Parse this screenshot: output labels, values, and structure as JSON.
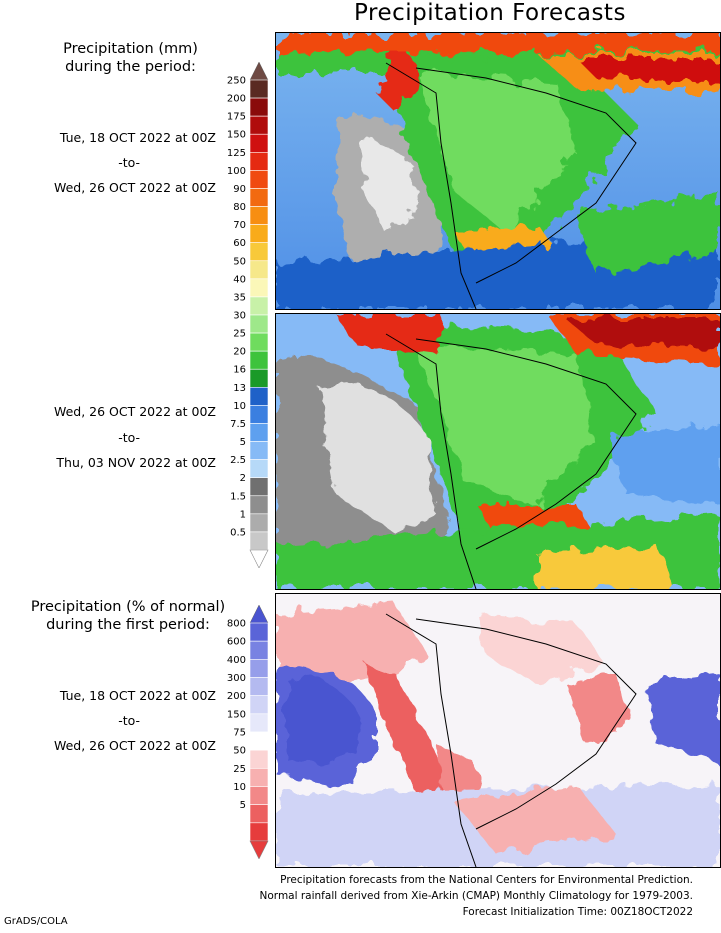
{
  "title": "Precipitation Forecasts",
  "top_heading": [
    "Precipitation (mm)",
    "during the period:"
  ],
  "period1": {
    "start": "Tue, 18 OCT 2022 at 00Z",
    "sep": "-to-",
    "end": "Wed, 26 OCT 2022 at 00Z"
  },
  "period2": {
    "start": "Wed, 26 OCT 2022 at 00Z",
    "sep": "-to-",
    "end": "Thu, 03 NOV 2022 at 00Z"
  },
  "precip_scale": {
    "labels": [
      "250",
      "200",
      "175",
      "150",
      "125",
      "100",
      "90",
      "80",
      "70",
      "60",
      "50",
      "40",
      "35",
      "30",
      "25",
      "20",
      "16",
      "13",
      "10",
      "7.5",
      "5",
      "2.5",
      "2",
      "1.5",
      "1",
      "0.5"
    ],
    "colors": [
      "#5a2a22",
      "#8a0b0b",
      "#b00c0c",
      "#cf1010",
      "#e52a12",
      "#f04a10",
      "#f26a10",
      "#f78e12",
      "#f9ab1a",
      "#f8c93a",
      "#f6e88a",
      "#fbf7b8",
      "#c8f1a8",
      "#9ee88a",
      "#6fdc5e",
      "#3ec33c",
      "#1a9a28",
      "#1f61c8",
      "#3b7fe0",
      "#5ea0ef",
      "#86baf6",
      "#b6d9f8",
      "#707070",
      "#8e8e8e",
      "#acacac",
      "#c8c8c8"
    ],
    "tip_top": "#6e4a44",
    "tip_bottom": "#ffffff"
  },
  "pct_heading": [
    "Precipitation (% of normal)",
    "during the first period:"
  ],
  "pct_period": {
    "start": "Tue, 18 OCT 2022 at 00Z",
    "sep": "-to-",
    "end": "Wed, 26 OCT 2022 at 00Z"
  },
  "pct_scale": {
    "labels": [
      "800",
      "600",
      "400",
      "300",
      "200",
      "150",
      "75",
      "50",
      "25",
      "10",
      "5"
    ],
    "colors": [
      "#5a64d8",
      "#7882e2",
      "#969eea",
      "#b4baf0",
      "#d0d4f6",
      "#e6e8fa",
      "#ffffff",
      "#fbd4d4",
      "#f7b0b0",
      "#f28888",
      "#ec6060",
      "#e63c3c"
    ],
    "tip_top": "#4a54d0",
    "tip_bottom": "#e63c3c"
  },
  "footer": [
    "Precipitation forecasts from the National Centers for Environmental Prediction.",
    "Normal rainfall derived from Xie-Arkin (CMAP) Monthly Climatology for 1979-2003.",
    "Forecast Initialization Time: 00Z18OCT2022"
  ],
  "credit": "GrADS/COLA"
}
